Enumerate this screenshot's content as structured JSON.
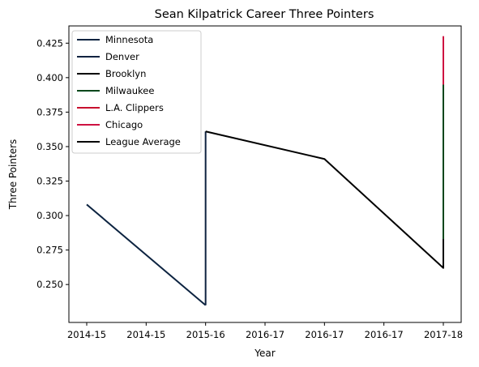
{
  "chart_data": {
    "type": "line",
    "title": "Sean Kilpatrick Career Three Pointers",
    "xlabel": "Year",
    "ylabel": "Three Pointers",
    "xlim": [
      -0.15,
      3.15
    ],
    "ylim": [
      0.2225,
      0.4375
    ],
    "x_ticks": [
      0,
      0.5,
      1,
      1.5,
      2,
      2.5,
      3
    ],
    "x_tick_labels": [
      "2014-15",
      "2014-15",
      "2015-16",
      "2016-17",
      "2016-17",
      "2016-17",
      "2017-18"
    ],
    "y_ticks": [
      0.25,
      0.275,
      0.3,
      0.325,
      0.35,
      0.375,
      0.4,
      0.425
    ],
    "y_tick_labels": [
      "0.250",
      "0.275",
      "0.300",
      "0.325",
      "0.350",
      "0.375",
      "0.400",
      "0.425"
    ],
    "grid": false,
    "legend_position": "top-left",
    "series": [
      {
        "name": "Minnesota",
        "color": "#0c2340",
        "points": [
          [
            0,
            0.308
          ],
          [
            1,
            0.235
          ]
        ]
      },
      {
        "name": "Denver",
        "color": "#0e2240",
        "points": [
          [
            1,
            0.235
          ],
          [
            1,
            0.361
          ]
        ]
      },
      {
        "name": "Brooklyn",
        "color": "#000000",
        "points": [
          [
            1,
            0.361
          ],
          [
            2,
            0.341
          ],
          [
            3,
            0.262
          ],
          [
            3,
            0.283
          ]
        ]
      },
      {
        "name": "Milwaukee",
        "color": "#00471b",
        "points": [
          [
            3,
            0.283
          ],
          [
            3,
            0.395
          ]
        ]
      },
      {
        "name": "L.A. Clippers",
        "color": "#c8102e",
        "points": [
          [
            3,
            0.395
          ],
          [
            3,
            0.43
          ]
        ]
      },
      {
        "name": "Chicago",
        "color": "#ce1141",
        "points": [
          [
            3,
            0.395
          ],
          [
            3,
            0.43
          ]
        ]
      },
      {
        "name": "League Average",
        "color": "#000000",
        "points": []
      }
    ]
  }
}
